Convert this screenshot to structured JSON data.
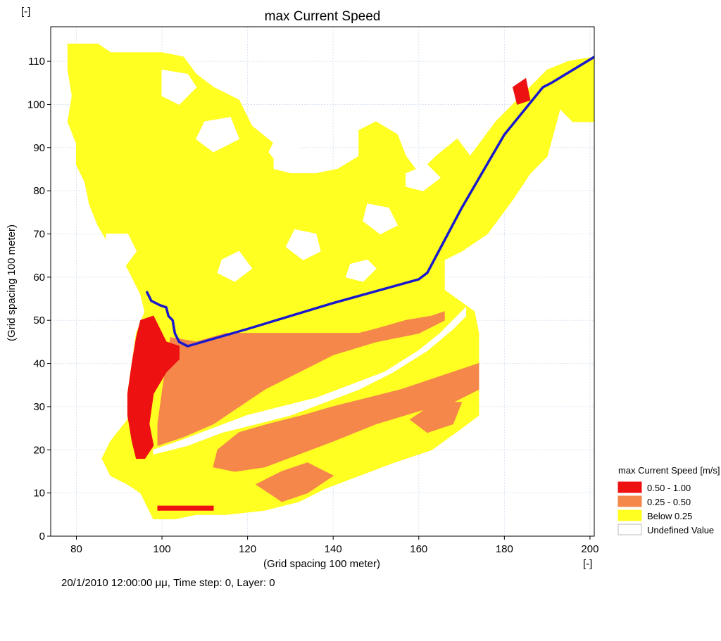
{
  "chart_data": {
    "type": "heatmap",
    "title": "max Current Speed",
    "xlabel": "(Grid spacing 100 meter)",
    "ylabel": "(Grid spacing 100 meter)",
    "x_unit_label": "[-]",
    "y_unit_label": "[-]",
    "xlim": [
      74,
      201
    ],
    "ylim": [
      0,
      118
    ],
    "x_ticks": [
      80,
      100,
      120,
      140,
      160,
      180,
      200
    ],
    "y_ticks": [
      0,
      10,
      20,
      30,
      40,
      50,
      60,
      70,
      80,
      90,
      100,
      110
    ],
    "grid": true,
    "legend": {
      "title": "max Current Speed [m/s]",
      "placement": "bottom-right, outside plot",
      "items": [
        {
          "label": "0.50 - 1.00",
          "color": "#ee1111"
        },
        {
          "label": "0.25 - 0.50",
          "color": "#f5874a"
        },
        {
          "label": "Below 0.25",
          "color": "#ffff22"
        },
        {
          "label": "Undefined Value",
          "color": "#ffffff"
        }
      ]
    },
    "regions": [
      {
        "class": "Below 0.25",
        "color": "#ffff22",
        "polygon": [
          [
            78,
            114
          ],
          [
            85,
            114
          ],
          [
            88,
            112
          ],
          [
            95,
            112
          ],
          [
            100,
            112
          ],
          [
            105,
            111
          ],
          [
            108,
            107
          ],
          [
            112,
            104
          ],
          [
            118,
            101
          ],
          [
            121,
            95
          ],
          [
            126,
            91
          ],
          [
            126,
            85
          ],
          [
            130,
            84
          ],
          [
            136,
            84
          ],
          [
            141,
            85
          ],
          [
            146,
            88
          ],
          [
            146,
            94
          ],
          [
            150,
            96
          ],
          [
            155,
            93
          ],
          [
            157,
            88
          ],
          [
            160,
            84
          ],
          [
            164,
            88
          ],
          [
            169,
            92
          ],
          [
            172,
            88
          ],
          [
            178,
            96
          ],
          [
            185,
            103
          ],
          [
            190,
            108
          ],
          [
            195,
            110
          ],
          [
            201,
            111
          ],
          [
            201,
            96
          ],
          [
            196,
            96
          ],
          [
            193,
            99
          ],
          [
            190,
            88
          ],
          [
            186,
            84
          ],
          [
            182,
            78
          ],
          [
            176,
            70
          ],
          [
            170,
            66
          ],
          [
            166,
            64
          ],
          [
            166,
            57
          ],
          [
            173,
            52
          ],
          [
            174,
            47
          ],
          [
            174,
            36
          ],
          [
            174,
            28
          ],
          [
            170,
            25
          ],
          [
            163,
            20
          ],
          [
            154,
            17
          ],
          [
            146,
            14
          ],
          [
            138,
            11
          ],
          [
            132,
            8
          ],
          [
            124,
            6
          ],
          [
            115,
            5
          ],
          [
            108,
            5
          ],
          [
            103,
            4
          ],
          [
            98,
            4
          ],
          [
            97,
            6
          ],
          [
            95,
            10
          ],
          [
            92,
            12
          ],
          [
            88,
            14
          ],
          [
            86,
            18
          ],
          [
            88,
            22
          ],
          [
            92,
            27
          ],
          [
            92,
            33
          ],
          [
            93,
            40
          ],
          [
            94,
            47
          ],
          [
            96,
            52
          ],
          [
            95,
            56
          ],
          [
            92,
            62
          ],
          [
            88,
            67
          ],
          [
            85,
            72
          ],
          [
            83,
            77
          ],
          [
            82,
            82
          ],
          [
            80,
            86
          ],
          [
            80,
            91
          ],
          [
            78,
            96
          ],
          [
            79,
            102
          ],
          [
            78,
            108
          ]
        ]
      },
      {
        "class": "0.25 - 0.50",
        "color": "#f5874a",
        "polygon": [
          [
            102,
            46
          ],
          [
            108,
            45
          ],
          [
            115,
            47
          ],
          [
            122,
            47
          ],
          [
            130,
            47
          ],
          [
            138,
            47
          ],
          [
            146,
            47
          ],
          [
            150,
            48
          ],
          [
            157,
            50
          ],
          [
            163,
            51
          ],
          [
            166,
            52
          ],
          [
            166,
            50
          ],
          [
            160,
            47
          ],
          [
            150,
            45
          ],
          [
            140,
            42
          ],
          [
            132,
            38
          ],
          [
            124,
            34
          ],
          [
            118,
            30
          ],
          [
            112,
            26
          ],
          [
            105,
            23
          ],
          [
            99,
            21
          ],
          [
            99,
            26
          ],
          [
            100,
            33
          ],
          [
            101,
            40
          ]
        ]
      },
      {
        "class": "0.25 - 0.50",
        "color": "#f5874a",
        "polygon": [
          [
            113,
            20
          ],
          [
            118,
            24
          ],
          [
            125,
            26
          ],
          [
            133,
            28
          ],
          [
            140,
            30
          ],
          [
            148,
            32
          ],
          [
            156,
            34
          ],
          [
            162,
            36
          ],
          [
            168,
            38
          ],
          [
            174,
            40
          ],
          [
            174,
            34
          ],
          [
            168,
            31
          ],
          [
            160,
            29
          ],
          [
            150,
            26
          ],
          [
            140,
            22
          ],
          [
            132,
            19
          ],
          [
            124,
            16
          ],
          [
            117,
            15
          ],
          [
            112,
            16
          ]
        ]
      },
      {
        "class": "0.25 - 0.50",
        "color": "#f5874a",
        "polygon": [
          [
            122,
            12
          ],
          [
            128,
            15
          ],
          [
            134,
            17
          ],
          [
            140,
            14
          ],
          [
            134,
            10
          ],
          [
            128,
            8
          ]
        ]
      },
      {
        "class": "0.25 - 0.50",
        "color": "#f5874a",
        "polygon": [
          [
            158,
            27
          ],
          [
            164,
            31
          ],
          [
            170,
            31
          ],
          [
            168,
            26
          ],
          [
            162,
            24
          ]
        ]
      },
      {
        "class": "0.50 - 1.00",
        "color": "#ee1111",
        "polygon": [
          [
            95,
            50
          ],
          [
            98,
            51
          ],
          [
            100,
            47
          ],
          [
            101,
            45
          ],
          [
            104,
            44
          ],
          [
            104,
            41
          ],
          [
            101,
            38
          ],
          [
            98,
            33
          ],
          [
            97,
            26
          ],
          [
            98,
            21
          ],
          [
            96,
            18
          ],
          [
            94,
            18
          ],
          [
            93,
            22
          ],
          [
            92,
            28
          ],
          [
            92,
            33
          ],
          [
            93,
            40
          ],
          [
            94,
            46
          ]
        ]
      },
      {
        "class": "0.50 - 1.00",
        "color": "#ee1111",
        "polygon": [
          [
            99,
            7
          ],
          [
            112,
            7
          ],
          [
            112,
            6
          ],
          [
            99,
            6
          ]
        ]
      },
      {
        "class": "0.50 - 1.00",
        "color": "#ee1111",
        "polygon": [
          [
            182,
            104
          ],
          [
            185,
            106
          ],
          [
            186,
            101
          ],
          [
            183,
            100
          ]
        ]
      }
    ],
    "holes": [
      {
        "polygon": [
          [
            100,
            108
          ],
          [
            106,
            107
          ],
          [
            108,
            104
          ],
          [
            104,
            100
          ],
          [
            100,
            102
          ]
        ]
      },
      {
        "polygon": [
          [
            110,
            96
          ],
          [
            116,
            97
          ],
          [
            118,
            92
          ],
          [
            112,
            89
          ],
          [
            108,
            92
          ]
        ]
      },
      {
        "polygon": [
          [
            127,
            93
          ],
          [
            132,
            92
          ],
          [
            133,
            87
          ],
          [
            128,
            85
          ],
          [
            125,
            89
          ]
        ]
      },
      {
        "polygon": [
          [
            148,
            77
          ],
          [
            153,
            76
          ],
          [
            155,
            72
          ],
          [
            151,
            70
          ],
          [
            147,
            73
          ]
        ]
      },
      {
        "polygon": [
          [
            131,
            71
          ],
          [
            136,
            70
          ],
          [
            137,
            66
          ],
          [
            133,
            64
          ],
          [
            129,
            67
          ]
        ]
      },
      {
        "policy": "hole",
        "polygon": [
          [
            144,
            63
          ],
          [
            148,
            64
          ],
          [
            150,
            62
          ],
          [
            147,
            59
          ],
          [
            143,
            60
          ]
        ]
      },
      {
        "polygon": [
          [
            114,
            64
          ],
          [
            118,
            66
          ],
          [
            121,
            62
          ],
          [
            117,
            59
          ],
          [
            113,
            61
          ]
        ]
      },
      {
        "polygon": [
          [
            157,
            84
          ],
          [
            162,
            86
          ],
          [
            165,
            83
          ],
          [
            161,
            80
          ],
          [
            157,
            81
          ]
        ]
      },
      {
        "polygon": [
          [
            87,
            70
          ],
          [
            92,
            70
          ],
          [
            94,
            66
          ],
          [
            91,
            62
          ],
          [
            87,
            64
          ]
        ]
      }
    ],
    "channel_gap": [
      [
        98,
        20
      ],
      [
        104,
        22
      ],
      [
        112,
        25
      ],
      [
        120,
        28
      ],
      [
        128,
        30
      ],
      [
        136,
        32
      ],
      [
        144,
        35
      ],
      [
        152,
        38
      ],
      [
        160,
        43
      ],
      [
        165,
        47
      ],
      [
        169,
        51
      ],
      [
        171,
        53
      ],
      [
        171,
        51
      ],
      [
        168,
        48
      ],
      [
        162,
        43
      ],
      [
        154,
        38
      ],
      [
        146,
        34
      ],
      [
        138,
        31
      ],
      [
        130,
        28
      ],
      [
        122,
        26
      ],
      [
        114,
        24
      ],
      [
        106,
        21
      ],
      [
        98,
        19
      ]
    ],
    "series": [
      {
        "type": "line",
        "color": "#1a1acc",
        "x": [
          96.5,
          97.5,
          99.5,
          101,
          101.5,
          102.5,
          103,
          104,
          106,
          120,
          140,
          160,
          162,
          170,
          180,
          189,
          191,
          201
        ],
        "y": [
          56.5,
          54.5,
          53.5,
          53,
          51,
          50,
          47,
          45,
          44,
          48,
          54,
          59.5,
          61,
          76,
          93,
          104,
          105,
          111
        ]
      }
    ]
  },
  "status": {
    "text": "20/1/2010 12:00:00 μμ, Time step: 0, Layer: 0"
  }
}
